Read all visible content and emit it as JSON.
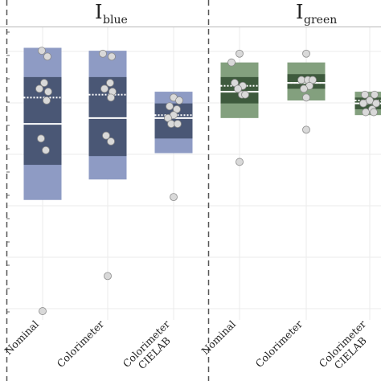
{
  "colors": {
    "blue_outer": "#8e9bc4",
    "blue_inner": "#4a5775",
    "green_outer": "#83a07e",
    "green_inner": "#3e5a3d",
    "point_fill": "#d9d9d9",
    "point_stroke": "#8a8a8a",
    "grid": "#ebebeb",
    "strip_line": "#b8b8b8",
    "dashed_line": "#555555"
  },
  "chart_data": {
    "type": "box",
    "title": "",
    "xlabel": "",
    "ylabel": "",
    "grid": true,
    "ylim": [
      1,
      0
    ],
    "facets": [
      {
        "title_main": "I",
        "title_sub": "blue",
        "color_key": "blue",
        "categories": [
          {
            "label_lines": [
              "Nominal"
            ],
            "outer": [
              0.07,
              0.59
            ],
            "inner": [
              0.17,
              0.47
            ],
            "median": 0.33,
            "mean": 0.24,
            "points": [
              {
                "dx": -1,
                "y": 0.08
              },
              {
                "dx": 6,
                "y": 0.1
              },
              {
                "dx": 2,
                "y": 0.19
              },
              {
                "dx": -4,
                "y": 0.21
              },
              {
                "dx": 7,
                "y": 0.22
              },
              {
                "dx": 5,
                "y": 0.25
              },
              {
                "dx": -2,
                "y": 0.38
              },
              {
                "dx": 4,
                "y": 0.42
              },
              {
                "dx": 0,
                "y": 0.97
              }
            ]
          },
          {
            "label_lines": [
              "Colorimeter"
            ],
            "outer": [
              0.08,
              0.52
            ],
            "inner": [
              0.17,
              0.44
            ],
            "median": 0.31,
            "mean": 0.23,
            "points": [
              {
                "dx": -6,
                "y": 0.09
              },
              {
                "dx": 5,
                "y": 0.1
              },
              {
                "dx": 3,
                "y": 0.19
              },
              {
                "dx": -4,
                "y": 0.21
              },
              {
                "dx": 6,
                "y": 0.22
              },
              {
                "dx": 4,
                "y": 0.24
              },
              {
                "dx": -2,
                "y": 0.37
              },
              {
                "dx": 4,
                "y": 0.39
              },
              {
                "dx": 0,
                "y": 0.85
              }
            ]
          },
          {
            "label_lines": [
              "Colorimeter",
              "CIELAB"
            ],
            "outer": [
              0.22,
              0.43
            ],
            "inner": [
              0.26,
              0.38
            ],
            "median": 0.31,
            "mean": 0.3,
            "points": [
              {
                "dx": 0,
                "y": 0.24
              },
              {
                "dx": 7,
                "y": 0.25
              },
              {
                "dx": -5,
                "y": 0.27
              },
              {
                "dx": 4,
                "y": 0.28
              },
              {
                "dx": 0,
                "y": 0.3
              },
              {
                "dx": -7,
                "y": 0.31
              },
              {
                "dx": -3,
                "y": 0.33
              },
              {
                "dx": 5,
                "y": 0.33
              },
              {
                "dx": 0,
                "y": 0.58
              }
            ]
          }
        ]
      },
      {
        "title_main": "I",
        "title_sub": "green",
        "color_key": "green",
        "categories": [
          {
            "label_lines": [
              "Nominal"
            ],
            "outer": [
              0.12,
              0.31
            ],
            "inner": [
              0.17,
              0.26
            ],
            "median": 0.22,
            "mean": 0.2,
            "points": [
              {
                "dx": 0,
                "y": 0.09
              },
              {
                "dx": -10,
                "y": 0.12
              },
              {
                "dx": -6,
                "y": 0.19
              },
              {
                "dx": 4,
                "y": 0.2
              },
              {
                "dx": -2,
                "y": 0.21
              },
              {
                "dx": 3,
                "y": 0.23
              },
              {
                "dx": 7,
                "y": 0.23
              },
              {
                "dx": 0,
                "y": 0.46
              }
            ]
          },
          {
            "label_lines": [
              "Colorimeter"
            ],
            "outer": [
              0.12,
              0.25
            ],
            "inner": [
              0.16,
              0.21
            ],
            "median": 0.19,
            "mean": 0.19,
            "points": [
              {
                "dx": 0,
                "y": 0.09
              },
              {
                "dx": -6,
                "y": 0.18
              },
              {
                "dx": 2,
                "y": 0.18
              },
              {
                "dx": 8,
                "y": 0.18
              },
              {
                "dx": 4,
                "y": 0.2
              },
              {
                "dx": -3,
                "y": 0.21
              },
              {
                "dx": 0,
                "y": 0.24
              },
              {
                "dx": 0,
                "y": 0.35
              }
            ]
          },
          {
            "label_lines": [
              "Colorimeter",
              "CIELAB"
            ],
            "outer": [
              0.22,
              0.3
            ],
            "inner": [
              0.24,
              0.28
            ],
            "median": 0.26,
            "mean": 0.25,
            "points": [
              {
                "dx": -6,
                "y": 0.23
              },
              {
                "dx": 6,
                "y": 0.23
              },
              {
                "dx": 0,
                "y": 0.25
              },
              {
                "dx": -8,
                "y": 0.26
              },
              {
                "dx": 8,
                "y": 0.26
              },
              {
                "dx": 3,
                "y": 0.28
              },
              {
                "dx": -5,
                "y": 0.29
              },
              {
                "dx": 5,
                "y": 0.29
              }
            ]
          }
        ]
      }
    ]
  }
}
